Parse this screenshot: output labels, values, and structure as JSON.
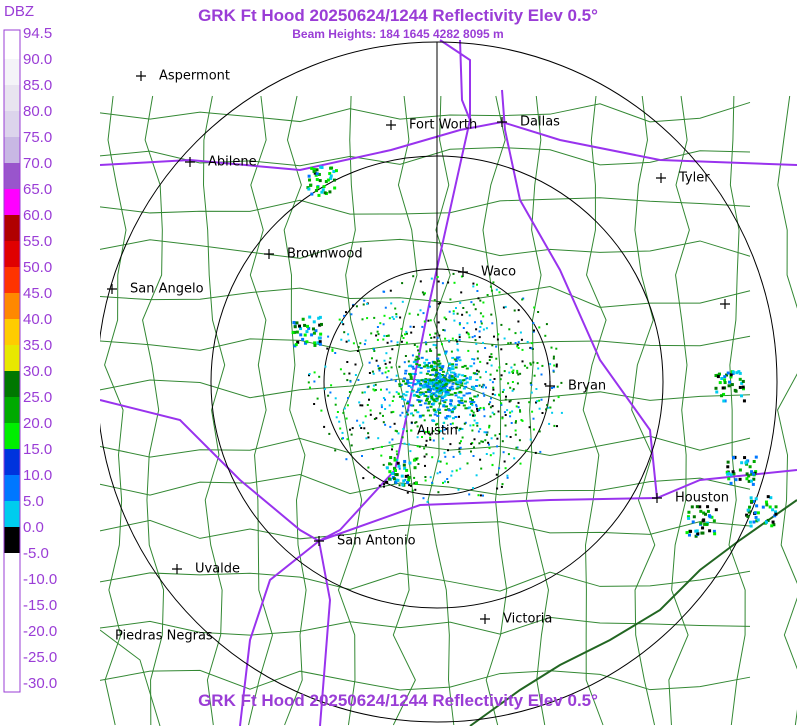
{
  "header": {
    "title": "GRK Ft Hood 20250624/1244 Reflectivity Elev 0.5°",
    "subtitle": "Beam Heights: 184 1645 4282 8095 m"
  },
  "legend": {
    "title": "DBZ",
    "items": [
      {
        "label": "94.5",
        "color": "#ffffff"
      },
      {
        "label": "90.0",
        "color": "#f4f4f8"
      },
      {
        "label": "85.0",
        "color": "#e8e4f0"
      },
      {
        "label": "80.0",
        "color": "#dcd4ec"
      },
      {
        "label": "75.0",
        "color": "#c8b8e4"
      },
      {
        "label": "70.0",
        "color": "#9955cc"
      },
      {
        "label": "65.0",
        "color": "#ff00ff"
      },
      {
        "label": "60.0",
        "color": "#b00000"
      },
      {
        "label": "55.0",
        "color": "#e00000"
      },
      {
        "label": "50.0",
        "color": "#ff3300"
      },
      {
        "label": "45.0",
        "color": "#ff8800"
      },
      {
        "label": "40.0",
        "color": "#ffcc00"
      },
      {
        "label": "35.0",
        "color": "#e8e800"
      },
      {
        "label": "30.0",
        "color": "#007700"
      },
      {
        "label": "25.0",
        "color": "#00aa00"
      },
      {
        "label": "20.0",
        "color": "#00ee00"
      },
      {
        "label": "15.0",
        "color": "#0033dd"
      },
      {
        "label": "10.0",
        "color": "#0077ff"
      },
      {
        "label": "5.0",
        "color": "#00ccee"
      },
      {
        "label": "0.0",
        "color": "#000000"
      },
      {
        "label": "-5.0",
        "color": "#ffffff"
      },
      {
        "label": "-10.0",
        "color": "#ffffff"
      },
      {
        "label": "-15.0",
        "color": "#ffffff"
      },
      {
        "label": "-20.0",
        "color": "#ffffff"
      },
      {
        "label": "-25.0",
        "color": "#ffffff"
      },
      {
        "label": "-30.0",
        "color": "#ffffff"
      }
    ]
  },
  "cities": [
    "Aspermont",
    "Abilene",
    "Fort Worth",
    "Dallas",
    "Tyler",
    "Brownwood",
    "Waco",
    "San Angelo",
    "Bryan",
    "Austin",
    "Houston",
    "San Antonio",
    "Uvalde",
    "Victoria",
    "Piedras Negras"
  ]
}
